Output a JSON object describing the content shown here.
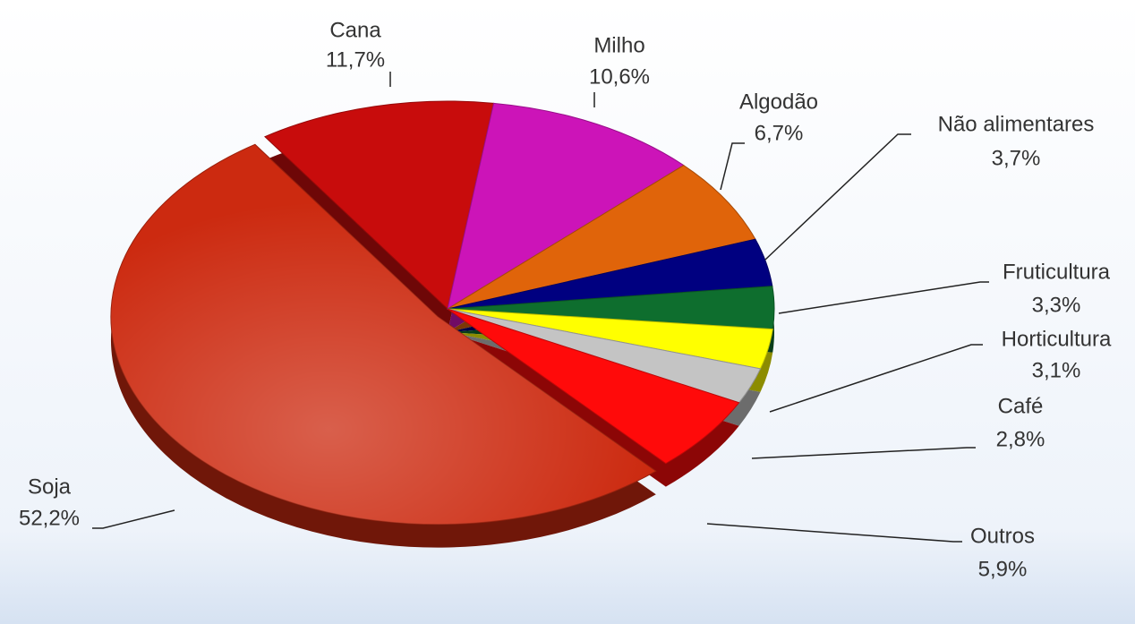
{
  "chart_data": {
    "type": "pie",
    "categories": [
      "Cana",
      "Milho",
      "Algodão",
      "Não alimentares",
      "Fruticultura",
      "Horticultura",
      "Café",
      "Outros",
      "Soja"
    ],
    "values": [
      11.7,
      10.6,
      6.7,
      3.7,
      3.3,
      3.1,
      2.8,
      5.9,
      52.2
    ],
    "value_labels": [
      "11,7%",
      "10,6%",
      "6,7%",
      "3,7%",
      "3,3%",
      "3,1%",
      "2,8%",
      "5,9%",
      "52,2%"
    ],
    "colors": [
      "#c80c0c",
      "#cc14b8",
      "#e0640a",
      "#000080",
      "#0e6e2e",
      "#ffff00",
      "#c4c4c4",
      "#ff0a0a",
      "#cc2a10"
    ]
  }
}
